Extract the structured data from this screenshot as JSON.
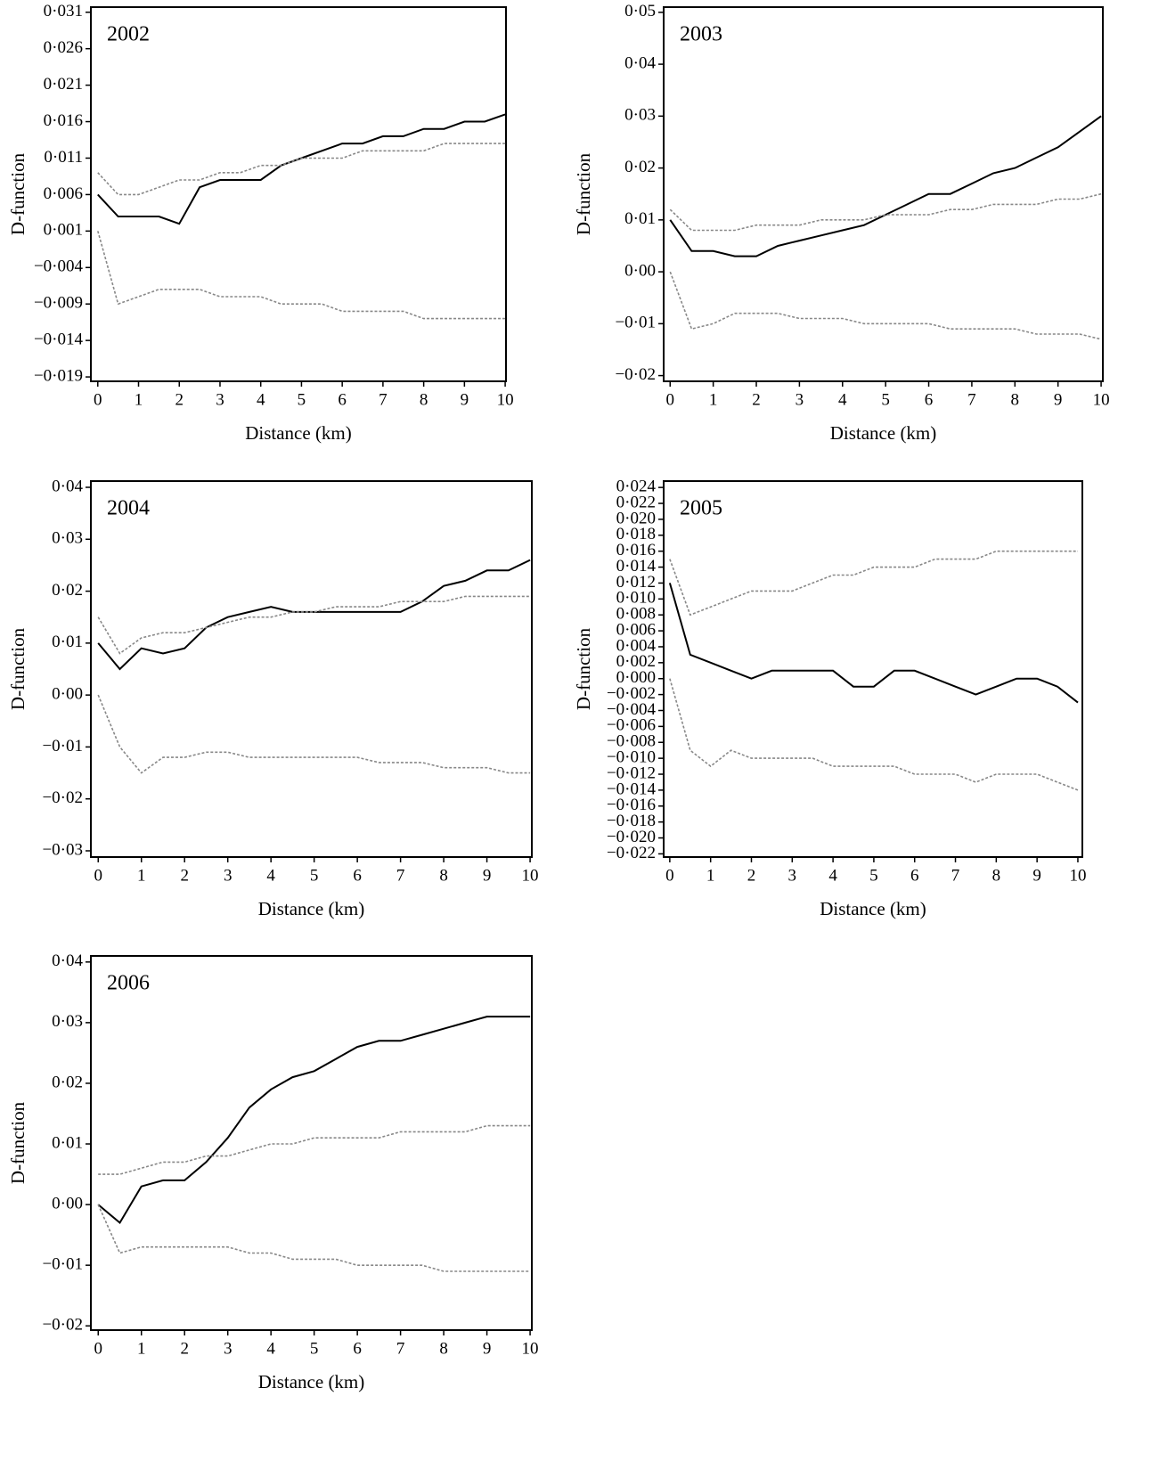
{
  "chart_data": [
    {
      "type": "line",
      "title": "2002",
      "x_label": "Distance (km)",
      "y_label": "D-function",
      "x": [
        0,
        0.5,
        1,
        1.5,
        2,
        2.5,
        3,
        3.5,
        4,
        4.5,
        5,
        5.5,
        6,
        6.5,
        7,
        7.5,
        8,
        8.5,
        9,
        9.5,
        10
      ],
      "xlim": [
        -0.17,
        10.02
      ],
      "xticks": [
        0,
        1,
        2,
        3,
        4,
        5,
        6,
        7,
        8,
        9,
        10
      ],
      "ylim": [
        -0.0196,
        0.0317
      ],
      "yticks": [
        {
          "value": 0.031,
          "label": "0·031"
        },
        {
          "value": 0.026,
          "label": "0·026"
        },
        {
          "value": 0.021,
          "label": "0·021"
        },
        {
          "value": 0.016,
          "label": "0·016"
        },
        {
          "value": 0.011,
          "label": "0·011"
        },
        {
          "value": 0.006,
          "label": "0·006"
        },
        {
          "value": 0.001,
          "label": "0·001"
        },
        {
          "value": -0.004,
          "label": "−0·004"
        },
        {
          "value": -0.009,
          "label": "−0·009"
        },
        {
          "value": -0.014,
          "label": "−0·014"
        },
        {
          "value": -0.019,
          "label": "−0·019"
        }
      ],
      "series": [
        {
          "color": "#000000",
          "style": "solid",
          "values": [
            0.006,
            0.003,
            0.003,
            0.003,
            0.002,
            0.007,
            0.008,
            0.008,
            0.008,
            0.01,
            0.011,
            0.012,
            0.013,
            0.013,
            0.014,
            0.014,
            0.015,
            0.015,
            0.016,
            0.016,
            0.017
          ]
        },
        {
          "color": "#888888",
          "style": "dotted",
          "values": [
            0.009,
            0.006,
            0.006,
            0.007,
            0.008,
            0.008,
            0.009,
            0.009,
            0.01,
            0.01,
            0.011,
            0.011,
            0.011,
            0.012,
            0.012,
            0.012,
            0.012,
            0.013,
            0.013,
            0.013,
            0.013
          ]
        },
        {
          "color": "#888888",
          "style": "dotted",
          "values": [
            0.001,
            -0.009,
            -0.008,
            -0.007,
            -0.007,
            -0.007,
            -0.008,
            -0.008,
            -0.008,
            -0.009,
            -0.009,
            -0.009,
            -0.01,
            -0.01,
            -0.01,
            -0.01,
            -0.011,
            -0.011,
            -0.011,
            -0.011,
            -0.011
          ]
        }
      ]
    },
    {
      "type": "line",
      "title": "2003",
      "x_label": "Distance (km)",
      "y_label": "D-function",
      "x": [
        0,
        0.5,
        1,
        1.5,
        2,
        2.5,
        3,
        3.5,
        4,
        4.5,
        5,
        5.5,
        6,
        6.5,
        7,
        7.5,
        8,
        8.5,
        9,
        9.5,
        10
      ],
      "xlim": [
        -0.15,
        10.04
      ],
      "xticks": [
        0,
        1,
        2,
        3,
        4,
        5,
        6,
        7,
        8,
        9,
        10
      ],
      "ylim": [
        -0.0211,
        0.051
      ],
      "yticks": [
        {
          "value": 0.05,
          "label": "0·05"
        },
        {
          "value": 0.04,
          "label": "0·04"
        },
        {
          "value": 0.03,
          "label": "0·03"
        },
        {
          "value": 0.02,
          "label": "0·02"
        },
        {
          "value": 0.01,
          "label": "0·01"
        },
        {
          "value": 0,
          "label": "0·00"
        },
        {
          "value": -0.01,
          "label": "−0·01"
        },
        {
          "value": -0.02,
          "label": "−0·02"
        }
      ],
      "series": [
        {
          "color": "#000000",
          "style": "solid",
          "values": [
            0.01,
            0.004,
            0.004,
            0.003,
            0.003,
            0.005,
            0.006,
            0.007,
            0.008,
            0.009,
            0.011,
            0.013,
            0.015,
            0.015,
            0.017,
            0.019,
            0.02,
            0.022,
            0.024,
            0.027,
            0.03
          ]
        },
        {
          "color": "#888888",
          "style": "dotted",
          "values": [
            0.012,
            0.008,
            0.008,
            0.008,
            0.009,
            0.009,
            0.009,
            0.01,
            0.01,
            0.01,
            0.011,
            0.011,
            0.011,
            0.012,
            0.012,
            0.013,
            0.013,
            0.013,
            0.014,
            0.014,
            0.015
          ]
        },
        {
          "color": "#888888",
          "style": "dotted",
          "values": [
            0,
            -0.011,
            -0.01,
            -0.008,
            -0.008,
            -0.008,
            -0.009,
            -0.009,
            -0.009,
            -0.01,
            -0.01,
            -0.01,
            -0.01,
            -0.011,
            -0.011,
            -0.011,
            -0.011,
            -0.012,
            -0.012,
            -0.012,
            -0.013
          ]
        }
      ]
    },
    {
      "type": "line",
      "title": "2004",
      "x_label": "Distance (km)",
      "y_label": "D-function",
      "x": [
        0,
        0.5,
        1,
        1.5,
        2,
        2.5,
        3,
        3.5,
        4,
        4.5,
        5,
        5.5,
        6,
        6.5,
        7,
        7.5,
        8,
        8.5,
        9,
        9.5,
        10
      ],
      "xlim": [
        -0.17,
        10.04
      ],
      "xticks": [
        0,
        1,
        2,
        3,
        4,
        5,
        6,
        7,
        8,
        9,
        10
      ],
      "ylim": [
        -0.0312,
        0.0412
      ],
      "yticks": [
        {
          "value": 0.04,
          "label": "0·04"
        },
        {
          "value": 0.03,
          "label": "0·03"
        },
        {
          "value": 0.02,
          "label": "0·02"
        },
        {
          "value": 0.01,
          "label": "0·01"
        },
        {
          "value": 0,
          "label": "0·00"
        },
        {
          "value": -0.01,
          "label": "−0·01"
        },
        {
          "value": -0.02,
          "label": "−0·02"
        },
        {
          "value": -0.03,
          "label": "−0·03"
        }
      ],
      "series": [
        {
          "color": "#000000",
          "style": "solid",
          "values": [
            0.01,
            0.005,
            0.009,
            0.008,
            0.009,
            0.013,
            0.015,
            0.016,
            0.017,
            0.016,
            0.016,
            0.016,
            0.016,
            0.016,
            0.016,
            0.018,
            0.021,
            0.022,
            0.024,
            0.024,
            0.026
          ]
        },
        {
          "color": "#888888",
          "style": "dotted",
          "values": [
            0.015,
            0.008,
            0.011,
            0.012,
            0.012,
            0.013,
            0.014,
            0.015,
            0.015,
            0.016,
            0.016,
            0.017,
            0.017,
            0.017,
            0.018,
            0.018,
            0.018,
            0.019,
            0.019,
            0.019,
            0.019
          ]
        },
        {
          "color": "#888888",
          "style": "dotted",
          "values": [
            0,
            -0.01,
            -0.015,
            -0.012,
            -0.012,
            -0.011,
            -0.011,
            -0.012,
            -0.012,
            -0.012,
            -0.012,
            -0.012,
            -0.012,
            -0.013,
            -0.013,
            -0.013,
            -0.014,
            -0.014,
            -0.014,
            -0.015,
            -0.015
          ]
        }
      ]
    },
    {
      "type": "line",
      "title": "2005",
      "x_label": "Distance (km)",
      "y_label": "D-function",
      "x": [
        0,
        0.5,
        1,
        1.5,
        2,
        2.5,
        3,
        3.5,
        4,
        4.5,
        5,
        5.5,
        6,
        6.5,
        7,
        7.5,
        8,
        8.5,
        9,
        9.5,
        10
      ],
      "xlim": [
        -0.15,
        10.11
      ],
      "xticks": [
        0,
        1,
        2,
        3,
        4,
        5,
        6,
        7,
        8,
        9,
        10
      ],
      "ylim": [
        -0.0224,
        0.0248
      ],
      "yticks": [
        {
          "value": 0.024,
          "label": "0·024"
        },
        {
          "value": 0.022,
          "label": "0·022"
        },
        {
          "value": 0.02,
          "label": "0·020"
        },
        {
          "value": 0.018,
          "label": "0·018"
        },
        {
          "value": 0.016,
          "label": "0·016"
        },
        {
          "value": 0.014,
          "label": "0·014"
        },
        {
          "value": 0.012,
          "label": "0·012"
        },
        {
          "value": 0.01,
          "label": "0·010"
        },
        {
          "value": 0.008,
          "label": "0·008"
        },
        {
          "value": 0.006,
          "label": "0·006"
        },
        {
          "value": 0.004,
          "label": "0·004"
        },
        {
          "value": 0.002,
          "label": "0·002"
        },
        {
          "value": 0,
          "label": "0·000"
        },
        {
          "value": -0.002,
          "label": "−0·002"
        },
        {
          "value": -0.004,
          "label": "−0·004"
        },
        {
          "value": -0.006,
          "label": "−0·006"
        },
        {
          "value": -0.008,
          "label": "−0·008"
        },
        {
          "value": -0.01,
          "label": "−0·010"
        },
        {
          "value": -0.012,
          "label": "−0·012"
        },
        {
          "value": -0.014,
          "label": "−0·014"
        },
        {
          "value": -0.016,
          "label": "−0·016"
        },
        {
          "value": -0.018,
          "label": "−0·018"
        },
        {
          "value": -0.02,
          "label": "−0·020"
        },
        {
          "value": -0.022,
          "label": "−0·022"
        }
      ],
      "series": [
        {
          "color": "#000000",
          "style": "solid",
          "values": [
            0.012,
            0.003,
            0.002,
            0.001,
            0,
            0.001,
            0.001,
            0.001,
            0.001,
            -0.001,
            -0.001,
            0.001,
            0.001,
            0,
            -0.001,
            -0.002,
            -0.001,
            0,
            0,
            -0.001,
            -0.003
          ]
        },
        {
          "color": "#888888",
          "style": "dotted",
          "values": [
            0.015,
            0.008,
            0.009,
            0.01,
            0.011,
            0.011,
            0.011,
            0.012,
            0.013,
            0.013,
            0.014,
            0.014,
            0.014,
            0.015,
            0.015,
            0.015,
            0.016,
            0.016,
            0.016,
            0.016,
            0.016
          ]
        },
        {
          "color": "#888888",
          "style": "dotted",
          "values": [
            0,
            -0.009,
            -0.011,
            -0.009,
            -0.01,
            -0.01,
            -0.01,
            -0.01,
            -0.011,
            -0.011,
            -0.011,
            -0.011,
            -0.012,
            -0.012,
            -0.012,
            -0.013,
            -0.012,
            -0.012,
            -0.012,
            -0.013,
            -0.014
          ]
        }
      ]
    },
    {
      "type": "line",
      "title": "2006",
      "x_label": "Distance (km)",
      "y_label": "D-function",
      "x": [
        0,
        0.5,
        1,
        1.5,
        2,
        2.5,
        3,
        3.5,
        4,
        4.5,
        5,
        5.5,
        6,
        6.5,
        7,
        7.5,
        8,
        8.5,
        9,
        9.5,
        10
      ],
      "xlim": [
        -0.17,
        10.04
      ],
      "xticks": [
        0,
        1,
        2,
        3,
        4,
        5,
        6,
        7,
        8,
        9,
        10
      ],
      "ylim": [
        -0.0207,
        0.041
      ],
      "yticks": [
        {
          "value": 0.04,
          "label": "0·04"
        },
        {
          "value": 0.03,
          "label": "0·03"
        },
        {
          "value": 0.02,
          "label": "0·02"
        },
        {
          "value": 0.01,
          "label": "0·01"
        },
        {
          "value": 0,
          "label": "0·00"
        },
        {
          "value": -0.01,
          "label": "−0·01"
        },
        {
          "value": -0.02,
          "label": "−0·02"
        }
      ],
      "series": [
        {
          "color": "#000000",
          "style": "solid",
          "values": [
            0,
            -0.003,
            0.003,
            0.004,
            0.004,
            0.007,
            0.011,
            0.016,
            0.019,
            0.021,
            0.022,
            0.024,
            0.026,
            0.027,
            0.027,
            0.028,
            0.029,
            0.03,
            0.031,
            0.031,
            0.031
          ]
        },
        {
          "color": "#888888",
          "style": "dotted",
          "values": [
            0.005,
            0.005,
            0.006,
            0.007,
            0.007,
            0.008,
            0.008,
            0.009,
            0.01,
            0.01,
            0.011,
            0.011,
            0.011,
            0.011,
            0.012,
            0.012,
            0.012,
            0.012,
            0.013,
            0.013,
            0.013
          ]
        },
        {
          "color": "#888888",
          "style": "dotted",
          "values": [
            0,
            -0.008,
            -0.007,
            -0.007,
            -0.007,
            -0.007,
            -0.007,
            -0.008,
            -0.008,
            -0.009,
            -0.009,
            -0.009,
            -0.01,
            -0.01,
            -0.01,
            -0.01,
            -0.011,
            -0.011,
            -0.011,
            -0.011,
            -0.011
          ]
        }
      ]
    }
  ]
}
